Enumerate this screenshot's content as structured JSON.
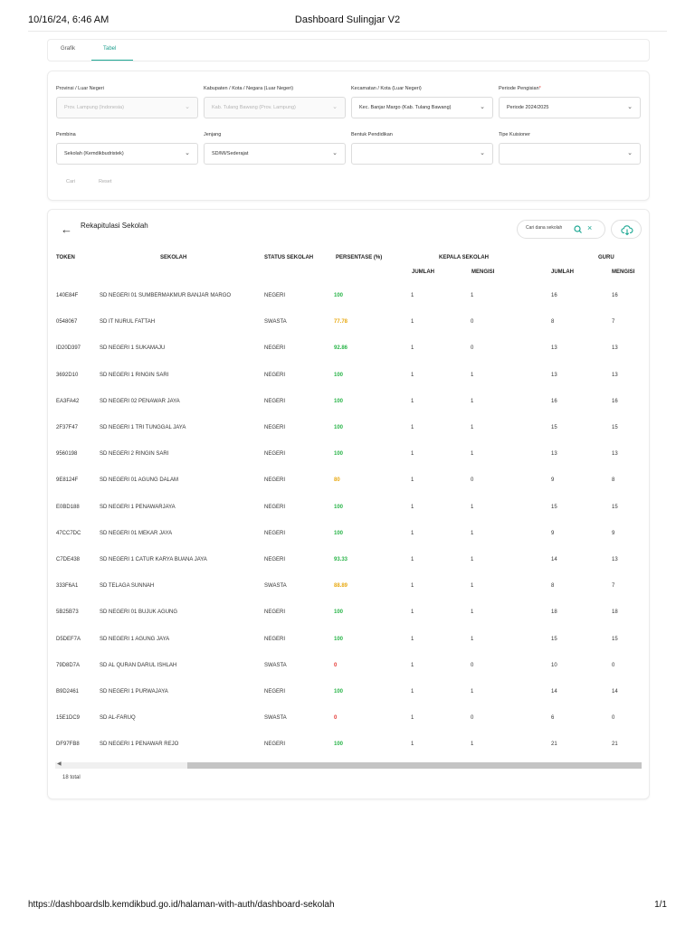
{
  "print_header": {
    "datetime": "10/16/24, 6:46 AM",
    "title": "Dashboard Sulingjar V2"
  },
  "tabs": [
    {
      "label": "Grafik"
    },
    {
      "label": "Tabel",
      "active": true
    }
  ],
  "filters": {
    "provinsi": {
      "label": "Provinsi / Luar Negeri",
      "value": "Prov. Lampung (Indonesia)"
    },
    "kabupaten": {
      "label": "Kabupaten / Kota / Negara (Luar Negeri)",
      "value": "Kab. Tulang Bawang (Prov. Lampung)"
    },
    "kecamatan": {
      "label": "Kecamatan / Kota (Luar Negeri)",
      "value": "Kec. Banjar Margo (Kab. Tulang Bawang)"
    },
    "periode": {
      "label": "Periode Pengisian",
      "required_mark": "*",
      "value": "Periode 2024/2025"
    },
    "pembina": {
      "label": "Pembina",
      "value": "Sekolah (Kemdikbudristek)"
    },
    "jenjang": {
      "label": "Jenjang",
      "value": "SD/MI/Sederajat"
    },
    "bentuk": {
      "label": "Bentuk Pendidikan",
      "value": ""
    },
    "tipe": {
      "label": "Tipe Kuisioner",
      "value": ""
    },
    "cari_label": "Cari",
    "reset_label": "Reset"
  },
  "rekap": {
    "title": "Rekapitulasi Sekolah",
    "search_placeholder": "Cari dana sekolah",
    "headers": {
      "token": "TOKEN",
      "sekolah": "SEKOLAH",
      "status": "STATUS SEKOLAH",
      "persentase": "PERSENTASE (%)",
      "kepala": "KEPALA SEKOLAH",
      "guru": "GURU",
      "jumlah": "JUMLAH",
      "mengisi": "MENGISI"
    },
    "rows": [
      {
        "token": "140E84F",
        "sekolah": "SD NEGERI 01 SUMBERMAKMUR BANJAR MARGO",
        "status": "NEGERI",
        "persentase": "100",
        "ks_jumlah": "1",
        "ks_mengisi": "1",
        "guru_jumlah": "16",
        "guru_mengisi": "16"
      },
      {
        "token": "0548067",
        "sekolah": "SD IT NURUL FATTAH",
        "status": "SWASTA",
        "persentase": "77.78",
        "ks_jumlah": "1",
        "ks_mengisi": "0",
        "guru_jumlah": "8",
        "guru_mengisi": "7"
      },
      {
        "token": "ID20D397",
        "sekolah": "SD NEGERI 1 SUKAMAJU",
        "status": "NEGERI",
        "persentase": "92.86",
        "ks_jumlah": "1",
        "ks_mengisi": "0",
        "guru_jumlah": "13",
        "guru_mengisi": "13"
      },
      {
        "token": "3692D10",
        "sekolah": "SD NEGERI 1 RINGIN SARI",
        "status": "NEGERI",
        "persentase": "100",
        "ks_jumlah": "1",
        "ks_mengisi": "1",
        "guru_jumlah": "13",
        "guru_mengisi": "13"
      },
      {
        "token": "EA3FA42",
        "sekolah": "SD NEGERI 02 PENAWAR JAYA",
        "status": "NEGERI",
        "persentase": "100",
        "ks_jumlah": "1",
        "ks_mengisi": "1",
        "guru_jumlah": "16",
        "guru_mengisi": "16"
      },
      {
        "token": "2F37F47",
        "sekolah": "SD NEGERI 1 TRI TUNGGAL JAYA",
        "status": "NEGERI",
        "persentase": "100",
        "ks_jumlah": "1",
        "ks_mengisi": "1",
        "guru_jumlah": "15",
        "guru_mengisi": "15"
      },
      {
        "token": "9560198",
        "sekolah": "SD NEGERI 2 RINGIN SARI",
        "status": "NEGERI",
        "persentase": "100",
        "ks_jumlah": "1",
        "ks_mengisi": "1",
        "guru_jumlah": "13",
        "guru_mengisi": "13"
      },
      {
        "token": "9E8124F",
        "sekolah": "SD NEGERI 01 AGUNG DALAM",
        "status": "NEGERI",
        "persentase": "80",
        "ks_jumlah": "1",
        "ks_mengisi": "0",
        "guru_jumlah": "9",
        "guru_mengisi": "8"
      },
      {
        "token": "E0BD188",
        "sekolah": "SD NEGERI 1 PENAWARJAYA",
        "status": "NEGERI",
        "persentase": "100",
        "ks_jumlah": "1",
        "ks_mengisi": "1",
        "guru_jumlah": "15",
        "guru_mengisi": "15"
      },
      {
        "token": "47CC7DC",
        "sekolah": "SD NEGERI 01 MEKAR JAYA",
        "status": "NEGERI",
        "persentase": "100",
        "ks_jumlah": "1",
        "ks_mengisi": "1",
        "guru_jumlah": "9",
        "guru_mengisi": "9"
      },
      {
        "token": "C7DE438",
        "sekolah": "SD NEGERI 1 CATUR KARYA BUANA JAYA",
        "status": "NEGERI",
        "persentase": "93.33",
        "ks_jumlah": "1",
        "ks_mengisi": "1",
        "guru_jumlah": "14",
        "guru_mengisi": "13"
      },
      {
        "token": "333F6A1",
        "sekolah": "SD TELAGA SUNNAH",
        "status": "SWASTA",
        "persentase": "88.89",
        "ks_jumlah": "1",
        "ks_mengisi": "1",
        "guru_jumlah": "8",
        "guru_mengisi": "7"
      },
      {
        "token": "5B25B73",
        "sekolah": "SD NEGERI 01 BUJUK AGUNG",
        "status": "NEGERI",
        "persentase": "100",
        "ks_jumlah": "1",
        "ks_mengisi": "1",
        "guru_jumlah": "18",
        "guru_mengisi": "18"
      },
      {
        "token": "D5DEF7A",
        "sekolah": "SD NEGERI 1 AGUNG JAYA",
        "status": "NEGERI",
        "persentase": "100",
        "ks_jumlah": "1",
        "ks_mengisi": "1",
        "guru_jumlah": "15",
        "guru_mengisi": "15"
      },
      {
        "token": "79D8D7A",
        "sekolah": "SD AL QURAN DARUL ISHLAH",
        "status": "SWASTA",
        "persentase": "0",
        "ks_jumlah": "1",
        "ks_mengisi": "0",
        "guru_jumlah": "10",
        "guru_mengisi": "0"
      },
      {
        "token": "B9D2461",
        "sekolah": "SD NEGERI 1 PURWAJAYA",
        "status": "NEGERI",
        "persentase": "100",
        "ks_jumlah": "1",
        "ks_mengisi": "1",
        "guru_jumlah": "14",
        "guru_mengisi": "14"
      },
      {
        "token": "15E1DC9",
        "sekolah": "SD AL-FARUQ",
        "status": "SWASTA",
        "persentase": "0",
        "ks_jumlah": "1",
        "ks_mengisi": "0",
        "guru_jumlah": "6",
        "guru_mengisi": "0"
      },
      {
        "token": "DF97FB8",
        "sekolah": "SD NEGERI 1 PENAWAR REJO",
        "status": "NEGERI",
        "persentase": "100",
        "ks_jumlah": "1",
        "ks_mengisi": "1",
        "guru_jumlah": "21",
        "guru_mengisi": "21"
      }
    ],
    "total_label": "18 total",
    "pct_colors": {
      "high": "#2bb54a",
      "mid": "#e8a912",
      "low": "#e53935"
    }
  },
  "print_footer": {
    "url": "https://dashboardslb.kemdikbud.go.id/halaman-with-auth/dashboard-sekolah",
    "page": "1/1"
  }
}
